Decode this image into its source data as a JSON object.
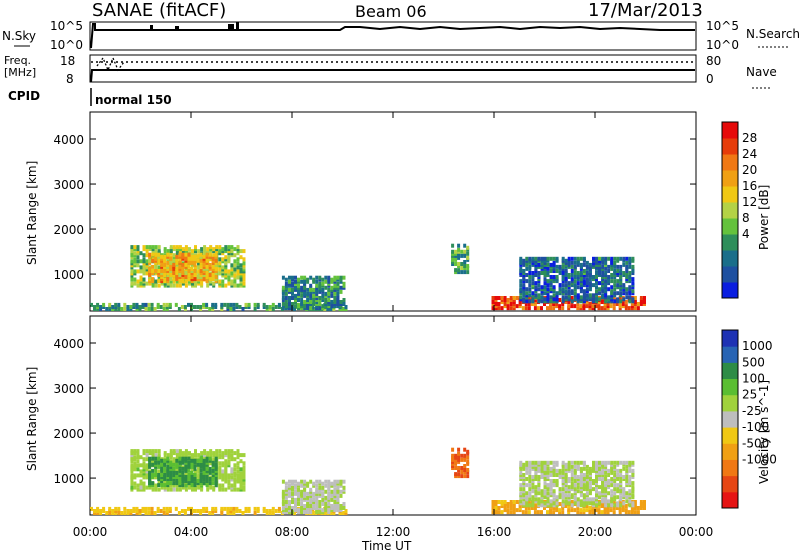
{
  "header": {
    "station": "SANAE (fitACF)",
    "beam": "Beam 06",
    "date": "17/Mar/2013"
  },
  "top_panels": {
    "nsky_label": "N.Sky",
    "nsky_ticks": [
      "10^5",
      "10^0"
    ],
    "nsearch_label": "N.Search",
    "nsearch_ticks": [
      "10^5",
      "10^0"
    ],
    "freq_label_1": "Freq.",
    "freq_label_2": "[MHz]",
    "freq_ticks": [
      "18",
      "8"
    ],
    "nave_label": "Nave",
    "nave_ticks": [
      "80",
      "0"
    ],
    "cpid_label": "CPID",
    "cpid_value": "normal 150"
  },
  "axes": {
    "x_ticks": [
      "00:00",
      "04:00",
      "08:00",
      "12:00",
      "16:00",
      "20:00",
      "00:00"
    ],
    "x_label": "Time UT",
    "y_label": "Slant Range [km]",
    "y_ticks": [
      "4000",
      "3000",
      "2000",
      "1000"
    ]
  },
  "colorbars": {
    "power": {
      "label": "Power [dB]",
      "ticks": [
        "28",
        "24",
        "20",
        "16",
        "12",
        "8",
        "4"
      ],
      "colors": [
        "#0a1ee0",
        "#1e50a0",
        "#1a6e8a",
        "#2e8e5a",
        "#64c23c",
        "#b4d246",
        "#f0c814",
        "#f0a014",
        "#f07814",
        "#e63c0a",
        "#e60a0a"
      ]
    },
    "velocity": {
      "label": "Velocity [m s^-1]",
      "ticks": [
        "1000",
        "500",
        "100",
        "25",
        "-25",
        "-100",
        "-500",
        "-1000"
      ],
      "colors": [
        "#1e32b4",
        "#2864b4",
        "#2d8c46",
        "#5abe32",
        "#a0d23c",
        "#bebebe",
        "#f0c814",
        "#f0a014",
        "#f07814",
        "#e64614",
        "#e61414"
      ]
    }
  },
  "chart_data": [
    {
      "type": "heatmap",
      "title": "Power",
      "xlabel": "Time UT",
      "ylabel": "Slant Range [km]",
      "xlim": [
        "00:00",
        "24:00"
      ],
      "ylim": [
        180,
        4600
      ],
      "colorbar": {
        "label": "Power [dB]",
        "range": [
          0,
          30
        ]
      },
      "regions": [
        {
          "t0": 1.6,
          "t1": 6.1,
          "r0": 700,
          "r1": 1600,
          "value": 14
        },
        {
          "t0": 2.3,
          "t1": 5.0,
          "r0": 800,
          "r1": 1400,
          "value": 20
        },
        {
          "t0": 0.0,
          "t1": 10.1,
          "r0": 180,
          "r1": 300,
          "value": 10
        },
        {
          "t0": 7.6,
          "t1": 10.0,
          "r0": 200,
          "r1": 900,
          "value": 8
        },
        {
          "t0": 14.3,
          "t1": 15.0,
          "r0": 1000,
          "r1": 1600,
          "value": 10
        },
        {
          "t0": 15.9,
          "t1": 22.0,
          "r0": 200,
          "r1": 450,
          "value": 26
        },
        {
          "t0": 17.0,
          "t1": 21.5,
          "r0": 350,
          "r1": 1300,
          "value": 6
        }
      ]
    },
    {
      "type": "heatmap",
      "title": "Velocity",
      "xlabel": "Time UT",
      "ylabel": "Slant Range [km]",
      "xlim": [
        "00:00",
        "24:00"
      ],
      "ylim": [
        180,
        4600
      ],
      "colorbar": {
        "label": "Velocity [m s^-1]",
        "range": [
          -1000,
          1000
        ]
      },
      "regions": [
        {
          "t0": 1.6,
          "t1": 6.1,
          "r0": 700,
          "r1": 1600,
          "value": 60
        },
        {
          "t0": 2.3,
          "t1": 5.0,
          "r0": 800,
          "r1": 1400,
          "value": 300
        },
        {
          "t0": 0.0,
          "t1": 10.1,
          "r0": 180,
          "r1": 300,
          "value": -80
        },
        {
          "t0": 7.6,
          "t1": 10.0,
          "r0": 200,
          "r1": 900,
          "value": 20
        },
        {
          "t0": 14.3,
          "t1": 15.0,
          "r0": 1000,
          "r1": 1600,
          "value": -500
        },
        {
          "t0": 15.9,
          "t1": 22.0,
          "r0": 200,
          "r1": 450,
          "value": -150
        },
        {
          "t0": 17.0,
          "t1": 21.5,
          "r0": 350,
          "r1": 1300,
          "value": 30
        }
      ]
    }
  ]
}
